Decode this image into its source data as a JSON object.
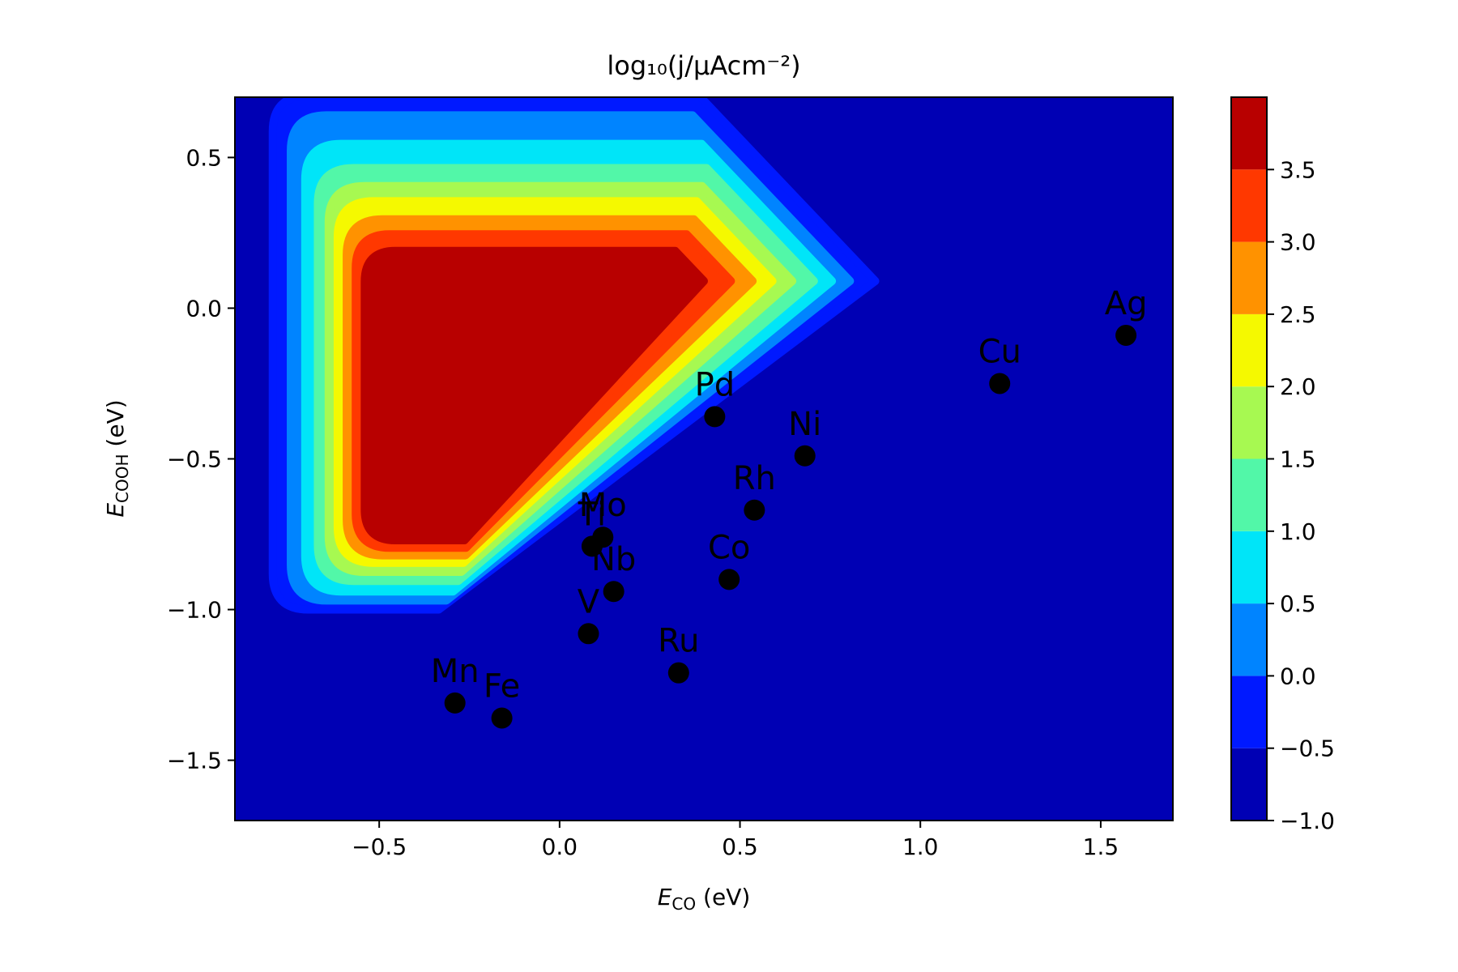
{
  "chart_data": {
    "type": "heatmap",
    "title": "log₁₀(j/μAcm⁻²)",
    "xlabel": "E_CO (eV)",
    "ylabel": "E_COOH (eV)",
    "xlabel_parts": {
      "main": "E",
      "sub": "CO",
      "unit": " (eV)"
    },
    "ylabel_parts": {
      "main": "E",
      "sub": "COOH",
      "unit": " (eV)"
    },
    "xlim": [
      -0.9,
      1.7
    ],
    "ylim": [
      -1.7,
      0.7
    ],
    "xticks": [
      -0.5,
      0.0,
      0.5,
      1.0,
      1.5
    ],
    "xtick_labels": [
      "−0.5",
      "0.0",
      "0.5",
      "1.0",
      "1.5"
    ],
    "yticks": [
      0.5,
      0.0,
      -0.5,
      -1.0,
      -1.5
    ],
    "ytick_labels": [
      "0.5",
      "0.0",
      "−0.5",
      "−1.0",
      "−1.5"
    ],
    "colorbar": {
      "range": [
        -1.0,
        4.0
      ],
      "ticks": [
        -1.0,
        -0.5,
        0.0,
        0.5,
        1.0,
        1.5,
        2.0,
        2.5,
        3.0,
        3.5
      ],
      "tick_labels": [
        "−1.0",
        "−0.5",
        "0.0",
        "0.5",
        "1.0",
        "1.5",
        "2.0",
        "2.5",
        "3.0",
        "3.5"
      ],
      "colors": [
        "#0000b4",
        "#0019ff",
        "#0084ff",
        "#00e5f8",
        "#52f7a8",
        "#a7f951",
        "#f5f900",
        "#ff9200",
        "#ff3800",
        "#b80000"
      ]
    },
    "contour_levels": [
      {
        "level": -0.5,
        "xmin": -0.795,
        "xmax": 0.875,
        "ymin": -1.0,
        "ymax": 0.705,
        "color": "#0019ff"
      },
      {
        "level": 0.0,
        "xmin": -0.745,
        "xmax": 0.805,
        "ymin": -0.97,
        "ymax": 0.64,
        "color": "#0084ff"
      },
      {
        "level": 0.5,
        "xmin": -0.705,
        "xmax": 0.755,
        "ymin": -0.94,
        "ymax": 0.545,
        "color": "#00e5f8"
      },
      {
        "level": 1.0,
        "xmin": -0.67,
        "xmax": 0.705,
        "ymin": -0.905,
        "ymax": 0.465,
        "color": "#52f7a8"
      },
      {
        "level": 1.5,
        "xmin": -0.64,
        "xmax": 0.645,
        "ymin": -0.875,
        "ymax": 0.405,
        "color": "#a7f951"
      },
      {
        "level": 2.0,
        "xmin": -0.615,
        "xmax": 0.59,
        "ymin": -0.845,
        "ymax": 0.355,
        "color": "#f5f900"
      },
      {
        "level": 2.5,
        "xmin": -0.59,
        "xmax": 0.535,
        "ymin": -0.82,
        "ymax": 0.295,
        "color": "#ff9200"
      },
      {
        "level": 3.0,
        "xmin": -0.565,
        "xmax": 0.475,
        "ymin": -0.795,
        "ymax": 0.245,
        "color": "#ff3800"
      },
      {
        "level": 3.5,
        "xmin": -0.54,
        "xmax": 0.4,
        "ymin": -0.77,
        "ymax": 0.19,
        "color": "#b80000"
      }
    ],
    "points": [
      {
        "label": "Ag",
        "x": 1.57,
        "y": -0.09
      },
      {
        "label": "Cu",
        "x": 1.22,
        "y": -0.25
      },
      {
        "label": "Pd",
        "x": 0.43,
        "y": -0.36
      },
      {
        "label": "Ni",
        "x": 0.68,
        "y": -0.49
      },
      {
        "label": "Rh",
        "x": 0.54,
        "y": -0.67
      },
      {
        "label": "Mo",
        "x": 0.12,
        "y": -0.76
      },
      {
        "label": "Ti",
        "x": 0.09,
        "y": -0.79
      },
      {
        "label": "Nb",
        "x": 0.15,
        "y": -0.94
      },
      {
        "label": "Co",
        "x": 0.47,
        "y": -0.9
      },
      {
        "label": "V",
        "x": 0.08,
        "y": -1.08
      },
      {
        "label": "Ru",
        "x": 0.33,
        "y": -1.21
      },
      {
        "label": "Mn",
        "x": -0.29,
        "y": -1.31
      },
      {
        "label": "Fe",
        "x": -0.16,
        "y": -1.36
      }
    ]
  }
}
